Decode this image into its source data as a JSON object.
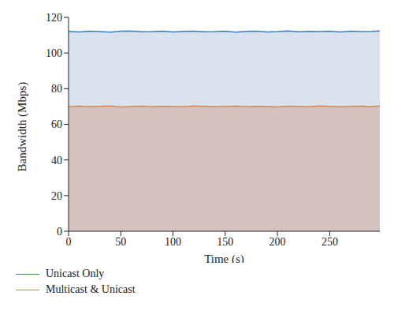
{
  "chart_data": {
    "type": "area",
    "x_label": "Time (s)",
    "y_label": "Bandwidth (Mbps)",
    "x": [
      0,
      10,
      20,
      30,
      40,
      50,
      60,
      70,
      80,
      90,
      100,
      110,
      120,
      130,
      140,
      150,
      160,
      170,
      180,
      190,
      200,
      210,
      220,
      230,
      240,
      250,
      260,
      270,
      280,
      290,
      298
    ],
    "series": [
      {
        "name": "Unicast Only",
        "color": "#3b7dc4",
        "values": [
          112.1,
          111.8,
          112.3,
          112.0,
          111.7,
          112.2,
          112.4,
          111.9,
          112.0,
          112.3,
          111.8,
          112.1,
          112.2,
          111.9,
          112.0,
          112.3,
          111.7,
          112.1,
          112.2,
          111.8,
          112.0,
          112.4,
          111.9,
          112.1,
          112.0,
          112.2,
          111.8,
          112.3,
          112.0,
          112.1,
          112.4
        ]
      },
      {
        "name": "Multicast & Unicast",
        "color": "#e8823a",
        "values": [
          69.8,
          70.2,
          69.9,
          70.1,
          70.3,
          69.7,
          70.0,
          70.2,
          69.8,
          70.1,
          70.0,
          69.9,
          70.3,
          70.1,
          69.8,
          70.0,
          70.2,
          69.9,
          70.1,
          70.0,
          69.7,
          70.2,
          70.0,
          69.9,
          70.3,
          70.1,
          69.8,
          70.0,
          70.2,
          69.9,
          70.3
        ]
      }
    ],
    "xlim": [
      0,
      298
    ],
    "xticks": [
      0,
      50,
      100,
      150,
      200,
      250
    ],
    "ylim": [
      0,
      120
    ],
    "yticks": [
      0,
      20,
      40,
      60,
      80,
      100,
      120
    ],
    "grid": false,
    "legend": "bottom left"
  }
}
